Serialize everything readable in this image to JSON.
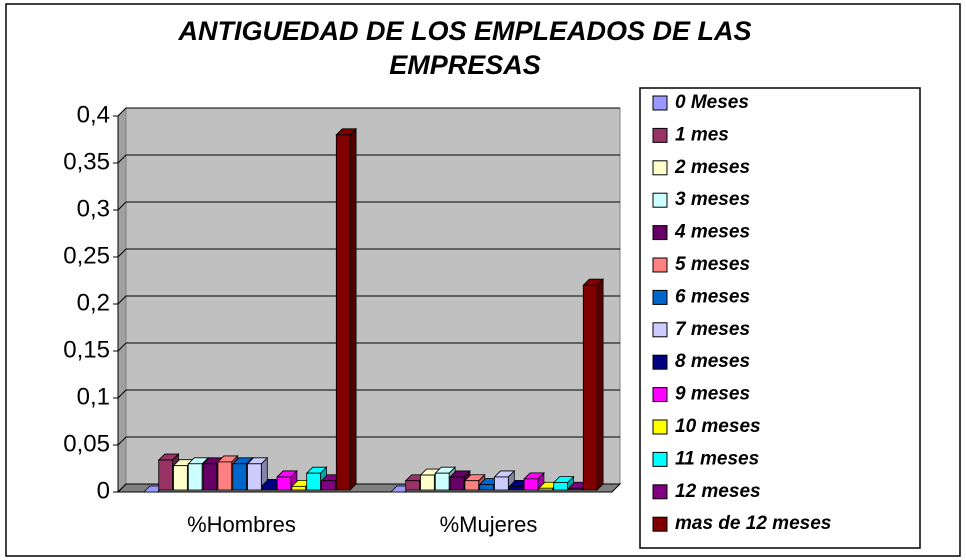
{
  "chart_data": {
    "type": "bar3d",
    "title": "ANTIGUEDAD DE LOS EMPLEADOS DE LAS EMPRESAS",
    "categories": [
      "%Hombres",
      "%Mujeres"
    ],
    "series": [
      {
        "name": "0 Meses",
        "color": "#9999FF",
        "values": [
          0,
          0
        ]
      },
      {
        "name": "1 mes",
        "color": "#993366",
        "values": [
          0.034,
          0.012
        ]
      },
      {
        "name": "2 meses",
        "color": "#FFFFCC",
        "values": [
          0.028,
          0.018
        ]
      },
      {
        "name": "3 meses",
        "color": "#CCFFFF",
        "values": [
          0.03,
          0.02
        ]
      },
      {
        "name": "4 meses",
        "color": "#660066",
        "values": [
          0.03,
          0.016
        ]
      },
      {
        "name": "5 meses",
        "color": "#FF8080",
        "values": [
          0.032,
          0.012
        ]
      },
      {
        "name": "6 meses",
        "color": "#0066CC",
        "values": [
          0.03,
          0.008
        ]
      },
      {
        "name": "7 meses",
        "color": "#CCCCFF",
        "values": [
          0.03,
          0.016
        ]
      },
      {
        "name": "8 meses",
        "color": "#000080",
        "values": [
          0.007,
          0.006
        ]
      },
      {
        "name": "9 meses",
        "color": "#FF00FF",
        "values": [
          0.016,
          0.014
        ]
      },
      {
        "name": "10 meses",
        "color": "#FFFF00",
        "values": [
          0.006,
          0.004
        ]
      },
      {
        "name": "11 meses",
        "color": "#00FFFF",
        "values": [
          0.02,
          0.01
        ]
      },
      {
        "name": "12 meses",
        "color": "#800080",
        "values": [
          0.012,
          0.004
        ]
      },
      {
        "name": "mas de 12 meses",
        "color": "#800000",
        "values": [
          0.38,
          0.22
        ]
      }
    ],
    "ylim": [
      0,
      0.4
    ],
    "yticks": [
      0,
      {
        "value": 0.05,
        "label": "0,05"
      },
      {
        "value": 0.1,
        "label": "0,1"
      },
      {
        "value": 0.15,
        "label": "0,15"
      },
      {
        "value": 0.2,
        "label": "0,2"
      },
      {
        "value": 0.25,
        "label": "0,25"
      },
      {
        "value": 0.3,
        "label": "0,3"
      },
      {
        "value": 0.35,
        "label": "0,35"
      },
      {
        "value": 0.4,
        "label": "0,4"
      }
    ],
    "grid": true
  }
}
